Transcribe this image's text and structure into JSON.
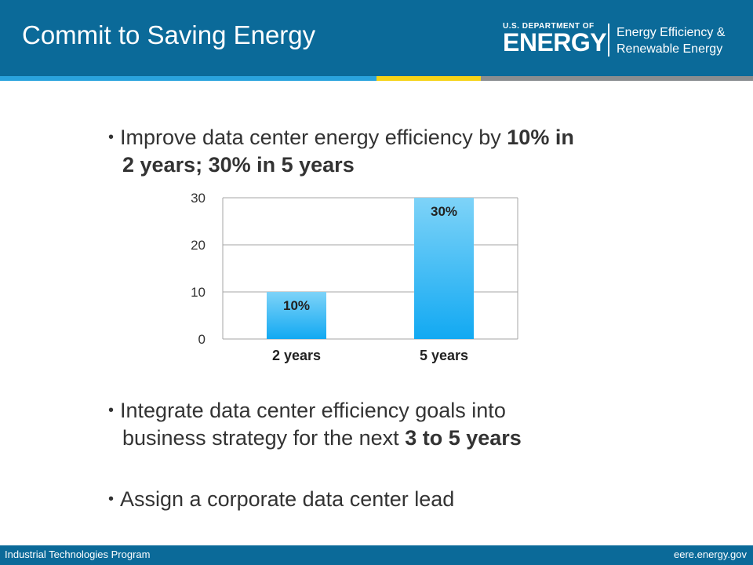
{
  "header": {
    "title": "Commit to Saving Energy",
    "logo_small": "U.S. DEPARTMENT OF",
    "logo_big": "ENERGY",
    "office_line1": "Energy Efficiency &",
    "office_line2": "Renewable Energy"
  },
  "bullets": {
    "b1_pre": "Improve data center energy efficiency by ",
    "b1_bold1": "10% in",
    "b1_line2": "2 years; 30% in 5 years",
    "b2_line1": "Integrate data center efficiency goals into",
    "b2_line2_pre": "business strategy for the next ",
    "b2_line2_bold": "3 to 5 years",
    "b3": "Assign a corporate data center lead"
  },
  "chart_data": {
    "type": "bar",
    "categories": [
      "2 years",
      "5 years"
    ],
    "values": [
      10,
      30
    ],
    "data_labels": [
      "10%",
      "30%"
    ],
    "yticks": [
      "0",
      "10",
      "20",
      "30"
    ],
    "ylim": [
      0,
      30
    ],
    "grid": true,
    "bar_color_top": "#7ed3f8",
    "bar_color_bottom": "#12a9f2"
  },
  "footer": {
    "left": "Industrial Technologies Program",
    "right": "eere.energy.gov"
  },
  "colors": {
    "header_bg": "#0b6a99",
    "stripe_blue": "#2aa3dd",
    "stripe_yellow": "#f5d317",
    "stripe_gray": "#8a8d90"
  }
}
